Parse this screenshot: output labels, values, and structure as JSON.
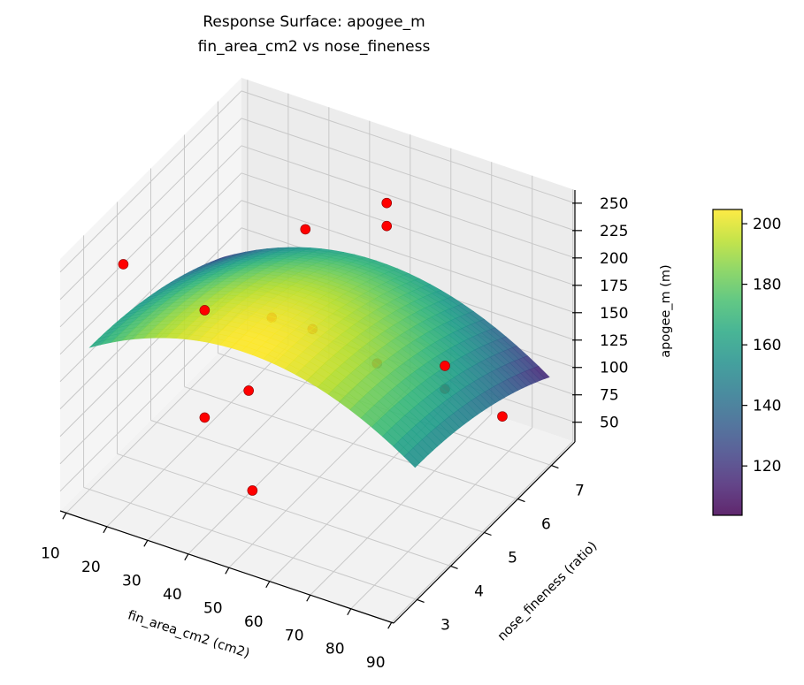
{
  "chart_data": {
    "type": "surface3d",
    "title": "Response Surface: apogee_m",
    "subtitle": "fin_area_cm2 vs nose_fineness",
    "xlabel": "fin_area_cm2 (cm2)",
    "ylabel": "nose_fineness (ratio)",
    "zlabel": "apogee_m (m)",
    "xlim": [
      8.5,
      90.5
    ],
    "ylim": [
      2.3,
      7.7
    ],
    "zlim": [
      32,
      262
    ],
    "xticks": [
      "10",
      "20",
      "30",
      "40",
      "50",
      "60",
      "70",
      "80",
      "90"
    ],
    "yticks": [
      "3",
      "4",
      "5",
      "6",
      "7"
    ],
    "zticks": [
      "50",
      "75",
      "100",
      "125",
      "150",
      "175",
      "200",
      "225",
      "250"
    ],
    "grid": true,
    "surface": {
      "colormap": "viridis",
      "fin_range": [
        10,
        90
      ],
      "nose_range": [
        3,
        7
      ],
      "model": "apogee = 205 - 0.03*(fin-48)^2 - 2.5*(nose-3)^2"
    },
    "colorbar": {
      "range": [
        103.7,
        204.7
      ],
      "ticks": [
        "120",
        "140",
        "160",
        "180",
        "200"
      ]
    },
    "points": {
      "color": "#ff0000",
      "data": [
        {
          "fin": 10,
          "nose": 4.0,
          "apogee": 207
        },
        {
          "fin": 30,
          "nose": 4.0,
          "apogee": 190
        },
        {
          "fin": 30,
          "nose": 7.0,
          "apogee": 172
        },
        {
          "fin": 50,
          "nose": 7.0,
          "apogee": 221
        },
        {
          "fin": 50,
          "nose": 7.0,
          "apogee": 200
        },
        {
          "fin": 30,
          "nose": 6.0,
          "apogee": 122
        },
        {
          "fin": 40,
          "nose": 6.0,
          "apogee": 124
        },
        {
          "fin": 60,
          "nose": 5.5,
          "apogee": 133
        },
        {
          "fin": 80,
          "nose": 5.1,
          "apogee": 168
        },
        {
          "fin": 80,
          "nose": 5.1,
          "apogee": 147
        },
        {
          "fin": 90,
          "nose": 5.6,
          "apogee": 119
        },
        {
          "fin": 40,
          "nose": 4.1,
          "apogee": 126
        },
        {
          "fin": 30,
          "nose": 4.0,
          "apogee": 92
        },
        {
          "fin": 50,
          "nose": 3.0,
          "apogee": 81
        }
      ]
    }
  }
}
